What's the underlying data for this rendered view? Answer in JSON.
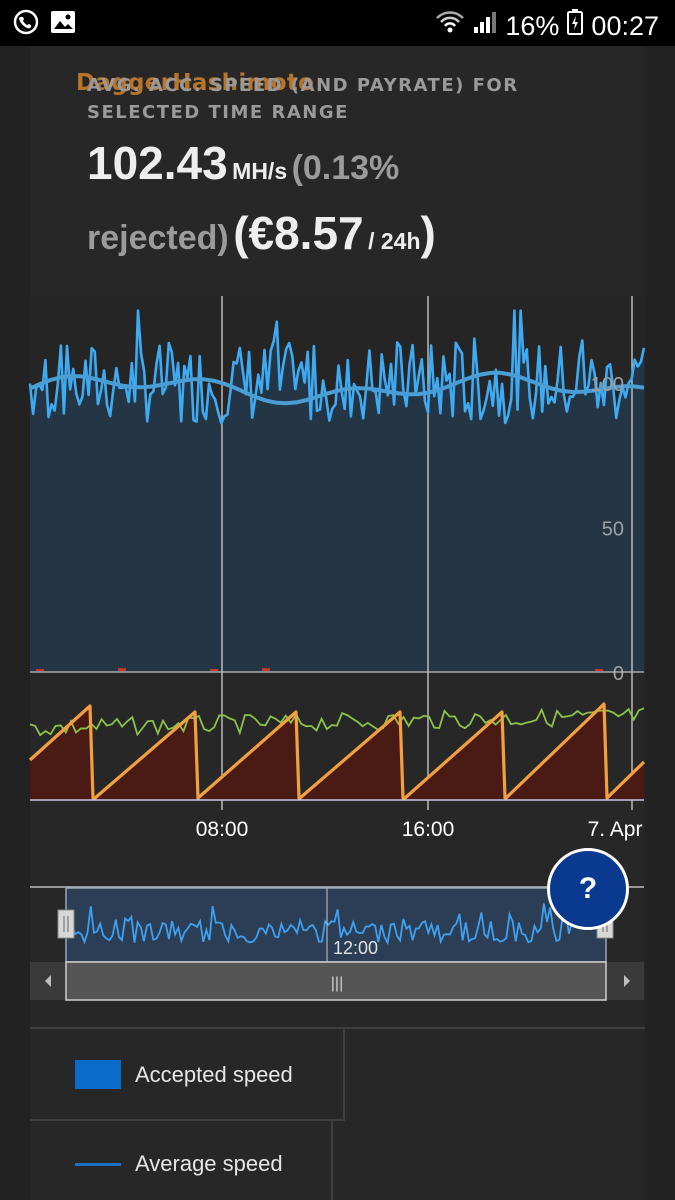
{
  "status_bar": {
    "battery_percent": "16%",
    "time": "00:27"
  },
  "header": {
    "algorithm": "DaggerHashimoto",
    "label": "AVG. ACC. SPEED (AND PAYRATE) FOR SELECTED TIME RANGE",
    "speed_value": "102.43",
    "speed_unit": "MH/s",
    "rejected_text_1": "(0.13%",
    "rejected_text_2": "rejected)",
    "payrate_open": "(",
    "payrate_value": "€8.57",
    "payrate_unit": "/ 24h",
    "payrate_close": ")"
  },
  "chart_data": {
    "type": "line",
    "y_axis": {
      "ylim": [
        0,
        130
      ],
      "ticks": [
        "0",
        "50",
        "100"
      ]
    },
    "x_axis": {
      "ticks": [
        "08:00",
        "16:00",
        "7. Apr"
      ]
    },
    "series": [
      {
        "name": "Accepted speed",
        "color": "#3eaaf2",
        "baseline": 100,
        "spread": 14
      },
      {
        "name": "Average speed",
        "color": "#4a9ed6",
        "baseline": 98
      }
    ],
    "lower_panel": {
      "sawtooth_color": "#f0a040",
      "sawtooth_fill": "#4a1a14",
      "sawtooth_cycles": 6,
      "green_line_color": "#8bc34a"
    },
    "navigator": {
      "label": "12:00",
      "scroll_handle": "|||"
    }
  },
  "help_button": {
    "label": "?"
  },
  "legend": [
    {
      "label": "Accepted speed",
      "color": "#0a6bc8",
      "kind": "box"
    },
    {
      "label": "Average speed",
      "color": "#1a6fc0",
      "kind": "line"
    }
  ],
  "icons": [
    "viber-icon",
    "image-icon",
    "wifi-icon",
    "signal-icon",
    "battery-icon"
  ]
}
